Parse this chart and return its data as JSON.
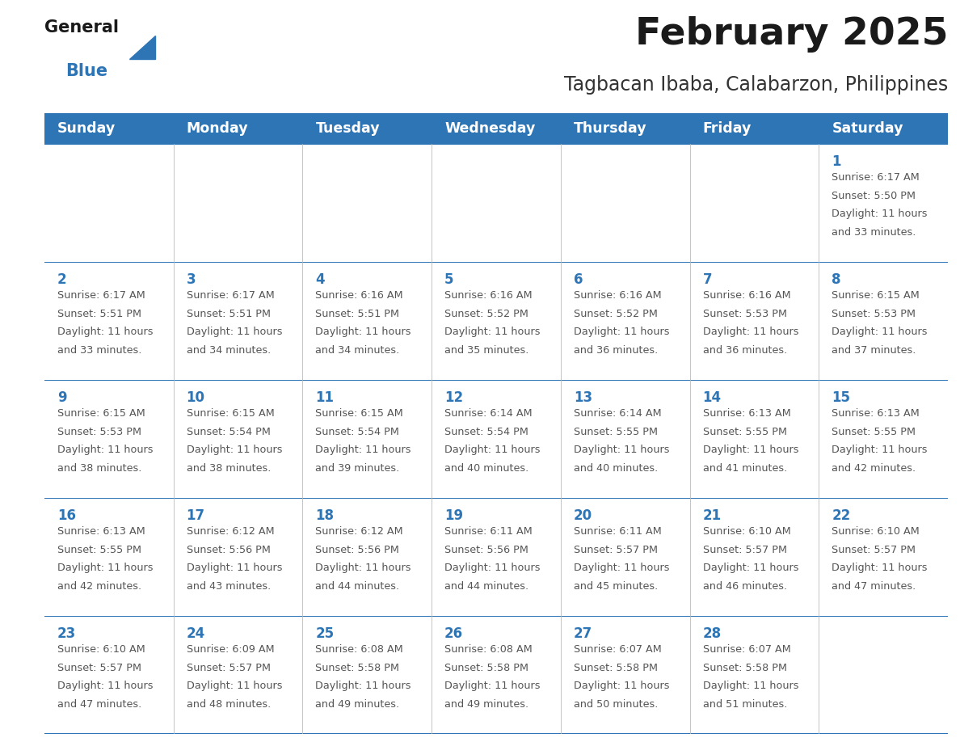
{
  "title": "February 2025",
  "subtitle": "Tagbacan Ibaba, Calabarzon, Philippines",
  "header_bg": "#2E75B6",
  "header_text_color": "#FFFFFF",
  "cell_bg": "#FFFFFF",
  "cell_border_color": "#2E75B6",
  "day_number_color": "#2E75B6",
  "cell_text_color": "#555555",
  "weekdays": [
    "Sunday",
    "Monday",
    "Tuesday",
    "Wednesday",
    "Thursday",
    "Friday",
    "Saturday"
  ],
  "title_color": "#1a1a1a",
  "subtitle_color": "#333333",
  "logo_general_color": "#1a1a1a",
  "logo_blue_color": "#2E75B6",
  "calendar": [
    [
      null,
      null,
      null,
      null,
      null,
      null,
      {
        "day": 1,
        "sunrise": "6:17 AM",
        "sunset": "5:50 PM",
        "daylight": "11 hours and 33 minutes."
      }
    ],
    [
      {
        "day": 2,
        "sunrise": "6:17 AM",
        "sunset": "5:51 PM",
        "daylight": "11 hours and 33 minutes."
      },
      {
        "day": 3,
        "sunrise": "6:17 AM",
        "sunset": "5:51 PM",
        "daylight": "11 hours and 34 minutes."
      },
      {
        "day": 4,
        "sunrise": "6:16 AM",
        "sunset": "5:51 PM",
        "daylight": "11 hours and 34 minutes."
      },
      {
        "day": 5,
        "sunrise": "6:16 AM",
        "sunset": "5:52 PM",
        "daylight": "11 hours and 35 minutes."
      },
      {
        "day": 6,
        "sunrise": "6:16 AM",
        "sunset": "5:52 PM",
        "daylight": "11 hours and 36 minutes."
      },
      {
        "day": 7,
        "sunrise": "6:16 AM",
        "sunset": "5:53 PM",
        "daylight": "11 hours and 36 minutes."
      },
      {
        "day": 8,
        "sunrise": "6:15 AM",
        "sunset": "5:53 PM",
        "daylight": "11 hours and 37 minutes."
      }
    ],
    [
      {
        "day": 9,
        "sunrise": "6:15 AM",
        "sunset": "5:53 PM",
        "daylight": "11 hours and 38 minutes."
      },
      {
        "day": 10,
        "sunrise": "6:15 AM",
        "sunset": "5:54 PM",
        "daylight": "11 hours and 38 minutes."
      },
      {
        "day": 11,
        "sunrise": "6:15 AM",
        "sunset": "5:54 PM",
        "daylight": "11 hours and 39 minutes."
      },
      {
        "day": 12,
        "sunrise": "6:14 AM",
        "sunset": "5:54 PM",
        "daylight": "11 hours and 40 minutes."
      },
      {
        "day": 13,
        "sunrise": "6:14 AM",
        "sunset": "5:55 PM",
        "daylight": "11 hours and 40 minutes."
      },
      {
        "day": 14,
        "sunrise": "6:13 AM",
        "sunset": "5:55 PM",
        "daylight": "11 hours and 41 minutes."
      },
      {
        "day": 15,
        "sunrise": "6:13 AM",
        "sunset": "5:55 PM",
        "daylight": "11 hours and 42 minutes."
      }
    ],
    [
      {
        "day": 16,
        "sunrise": "6:13 AM",
        "sunset": "5:55 PM",
        "daylight": "11 hours and 42 minutes."
      },
      {
        "day": 17,
        "sunrise": "6:12 AM",
        "sunset": "5:56 PM",
        "daylight": "11 hours and 43 minutes."
      },
      {
        "day": 18,
        "sunrise": "6:12 AM",
        "sunset": "5:56 PM",
        "daylight": "11 hours and 44 minutes."
      },
      {
        "day": 19,
        "sunrise": "6:11 AM",
        "sunset": "5:56 PM",
        "daylight": "11 hours and 44 minutes."
      },
      {
        "day": 20,
        "sunrise": "6:11 AM",
        "sunset": "5:57 PM",
        "daylight": "11 hours and 45 minutes."
      },
      {
        "day": 21,
        "sunrise": "6:10 AM",
        "sunset": "5:57 PM",
        "daylight": "11 hours and 46 minutes."
      },
      {
        "day": 22,
        "sunrise": "6:10 AM",
        "sunset": "5:57 PM",
        "daylight": "11 hours and 47 minutes."
      }
    ],
    [
      {
        "day": 23,
        "sunrise": "6:10 AM",
        "sunset": "5:57 PM",
        "daylight": "11 hours and 47 minutes."
      },
      {
        "day": 24,
        "sunrise": "6:09 AM",
        "sunset": "5:57 PM",
        "daylight": "11 hours and 48 minutes."
      },
      {
        "day": 25,
        "sunrise": "6:08 AM",
        "sunset": "5:58 PM",
        "daylight": "11 hours and 49 minutes."
      },
      {
        "day": 26,
        "sunrise": "6:08 AM",
        "sunset": "5:58 PM",
        "daylight": "11 hours and 49 minutes."
      },
      {
        "day": 27,
        "sunrise": "6:07 AM",
        "sunset": "5:58 PM",
        "daylight": "11 hours and 50 minutes."
      },
      {
        "day": 28,
        "sunrise": "6:07 AM",
        "sunset": "5:58 PM",
        "daylight": "11 hours and 51 minutes."
      },
      null
    ]
  ]
}
